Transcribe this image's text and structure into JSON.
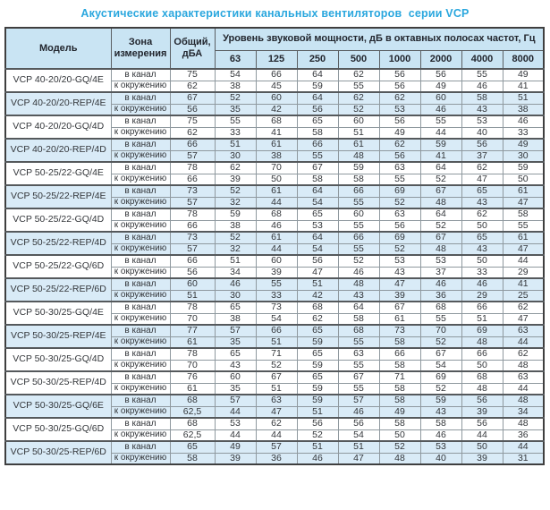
{
  "title": "Акустические характеристики канальных вентиляторов  серии VCP",
  "table": {
    "headers": {
      "model": "Модель",
      "zone": "Зона измерения",
      "total": "Общий, дБА",
      "freq_group": "Уровень звуковой мощности, дБ в октавных полосах частот, Гц",
      "frequencies": [
        "63",
        "125",
        "250",
        "500",
        "1000",
        "2000",
        "4000",
        "8000"
      ]
    },
    "groups": [
      {
        "model": "VCP 40-20/20-GQ/4E",
        "shaded": false,
        "rows": [
          {
            "zone": "в канал",
            "total": "75",
            "levels": [
              54,
              66,
              64,
              62,
              56,
              56,
              55,
              49
            ]
          },
          {
            "zone": "к окружению",
            "total": "62",
            "levels": [
              38,
              45,
              59,
              55,
              56,
              49,
              46,
              41
            ]
          }
        ]
      },
      {
        "model": "VCP 40-20/20-REP/4E",
        "shaded": true,
        "rows": [
          {
            "zone": "в канал",
            "total": "67",
            "levels": [
              52,
              60,
              64,
              62,
              62,
              60,
              58,
              51
            ]
          },
          {
            "zone": "к окружению",
            "total": "56",
            "levels": [
              35,
              42,
              56,
              52,
              53,
              46,
              43,
              38
            ]
          }
        ]
      },
      {
        "model": "VCP 40-20/20-GQ/4D",
        "shaded": false,
        "rows": [
          {
            "zone": "в канал",
            "total": "75",
            "levels": [
              55,
              68,
              65,
              60,
              56,
              55,
              53,
              46
            ]
          },
          {
            "zone": "к окружению",
            "total": "62",
            "levels": [
              33,
              41,
              58,
              51,
              49,
              44,
              40,
              33
            ]
          }
        ]
      },
      {
        "model": "VCP 40-20/20-REP/4D",
        "shaded": true,
        "rows": [
          {
            "zone": "в канал",
            "total": "66",
            "levels": [
              51,
              61,
              66,
              61,
              62,
              59,
              56,
              49
            ]
          },
          {
            "zone": "к окружению",
            "total": "57",
            "levels": [
              30,
              38,
              55,
              48,
              56,
              41,
              37,
              30
            ]
          }
        ]
      },
      {
        "model": "VCP 50-25/22-GQ/4E",
        "shaded": false,
        "rows": [
          {
            "zone": "в канал",
            "total": "78",
            "levels": [
              62,
              70,
              67,
              59,
              63,
              64,
              62,
              59
            ]
          },
          {
            "zone": "к окружению",
            "total": "66",
            "levels": [
              39,
              50,
              58,
              58,
              55,
              52,
              47,
              50
            ]
          }
        ]
      },
      {
        "model": "VCP 50-25/22-REP/4E",
        "shaded": true,
        "rows": [
          {
            "zone": "в канал",
            "total": "73",
            "levels": [
              52,
              61,
              64,
              66,
              69,
              67,
              65,
              61
            ]
          },
          {
            "zone": "к окружению",
            "total": "57",
            "levels": [
              32,
              44,
              54,
              55,
              52,
              48,
              43,
              47
            ]
          }
        ]
      },
      {
        "model": "VCP 50-25/22-GQ/4D",
        "shaded": false,
        "rows": [
          {
            "zone": "в канал",
            "total": "78",
            "levels": [
              59,
              68,
              65,
              60,
              63,
              64,
              62,
              58
            ]
          },
          {
            "zone": "к окружению",
            "total": "66",
            "levels": [
              38,
              46,
              53,
              55,
              56,
              52,
              50,
              55
            ]
          }
        ]
      },
      {
        "model": "VCP 50-25/22-REP/4D",
        "shaded": true,
        "rows": [
          {
            "zone": "в канал",
            "total": "73",
            "levels": [
              52,
              61,
              64,
              66,
              69,
              67,
              65,
              61
            ]
          },
          {
            "zone": "к окружению",
            "total": "57",
            "levels": [
              32,
              44,
              54,
              55,
              52,
              48,
              43,
              47
            ]
          }
        ]
      },
      {
        "model": "VCP 50-25/22-GQ/6D",
        "shaded": false,
        "rows": [
          {
            "zone": "в канал",
            "total": "66",
            "levels": [
              51,
              60,
              56,
              52,
              53,
              53,
              50,
              44
            ]
          },
          {
            "zone": "к окружению",
            "total": "56",
            "levels": [
              34,
              39,
              47,
              46,
              43,
              37,
              33,
              29
            ]
          }
        ]
      },
      {
        "model": "VCP 50-25/22-REP/6D",
        "shaded": true,
        "rows": [
          {
            "zone": "в канал",
            "total": "60",
            "levels": [
              46,
              55,
              51,
              48,
              47,
              46,
              46,
              41
            ]
          },
          {
            "zone": "к окружению",
            "total": "51",
            "levels": [
              30,
              33,
              42,
              43,
              39,
              36,
              29,
              25
            ]
          }
        ]
      },
      {
        "model": "VCP 50-30/25-GQ/4E",
        "shaded": false,
        "rows": [
          {
            "zone": "в канал",
            "total": "78",
            "levels": [
              65,
              73,
              68,
              64,
              67,
              68,
              66,
              62
            ]
          },
          {
            "zone": "к окружению",
            "total": "70",
            "levels": [
              38,
              54,
              62,
              58,
              61,
              55,
              51,
              47
            ]
          }
        ]
      },
      {
        "model": "VCP 50-30/25-REP/4E",
        "shaded": true,
        "rows": [
          {
            "zone": "в канал",
            "total": "77",
            "levels": [
              57,
              66,
              65,
              68,
              73,
              70,
              69,
              63
            ]
          },
          {
            "zone": "к окружению",
            "total": "61",
            "levels": [
              35,
              51,
              59,
              55,
              58,
              52,
              48,
              44
            ]
          }
        ]
      },
      {
        "model": "VCP 50-30/25-GQ/4D",
        "shaded": false,
        "rows": [
          {
            "zone": "в канал",
            "total": "78",
            "levels": [
              65,
              71,
              65,
              63,
              66,
              67,
              66,
              62
            ]
          },
          {
            "zone": "к окружению",
            "total": "70",
            "levels": [
              43,
              52,
              59,
              55,
              58,
              54,
              50,
              48
            ]
          }
        ]
      },
      {
        "model": "VCP 50-30/25-REP/4D",
        "shaded": false,
        "rows": [
          {
            "zone": "в канал",
            "total": "76",
            "levels": [
              60,
              67,
              65,
              67,
              71,
              69,
              68,
              63
            ]
          },
          {
            "zone": "к окружению",
            "total": "61",
            "levels": [
              35,
              51,
              59,
              55,
              58,
              52,
              48,
              44
            ]
          }
        ]
      },
      {
        "model": "VCP 50-30/25-GQ/6E",
        "shaded": true,
        "rows": [
          {
            "zone": "в канал",
            "total": "68",
            "levels": [
              57,
              63,
              59,
              57,
              58,
              59,
              56,
              48
            ]
          },
          {
            "zone": "к окружению",
            "total": "62,5",
            "levels": [
              44,
              47,
              51,
              46,
              49,
              43,
              39,
              34
            ]
          }
        ]
      },
      {
        "model": "VCP 50-30/25-GQ/6D",
        "shaded": false,
        "rows": [
          {
            "zone": "в канал",
            "total": "68",
            "levels": [
              53,
              62,
              56,
              56,
              58,
              58,
              56,
              48
            ]
          },
          {
            "zone": "к окружению",
            "total": "62,5",
            "levels": [
              44,
              44,
              52,
              54,
              50,
              46,
              44,
              36
            ]
          }
        ]
      },
      {
        "model": "VCP 50-30/25-REP/6D",
        "shaded": true,
        "rows": [
          {
            "zone": "в канал",
            "total": "65",
            "levels": [
              49,
              57,
              51,
              51,
              52,
              53,
              50,
              44
            ]
          },
          {
            "zone": "к окружению",
            "total": "58",
            "levels": [
              39,
              36,
              46,
              47,
              48,
              40,
              39,
              31
            ]
          }
        ]
      }
    ]
  }
}
